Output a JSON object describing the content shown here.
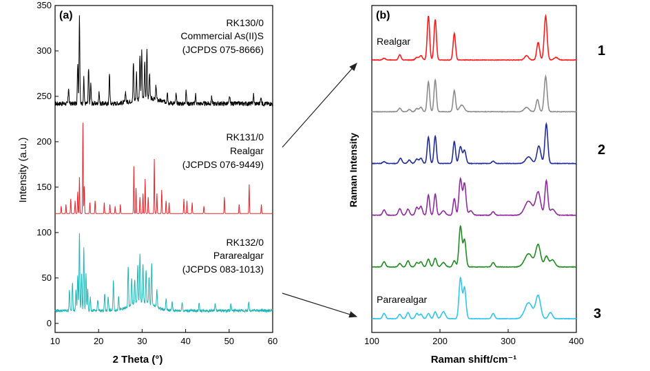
{
  "chart_data": [
    {
      "type": "line",
      "panel_label": "(a)",
      "xlabel": "2 Theta (°)",
      "ylabel": "Intensity (a.u.)",
      "xlim": [
        10,
        60
      ],
      "ylim": [
        -10,
        350
      ],
      "xticks": [
        10,
        20,
        30,
        40,
        50,
        60
      ],
      "yticks": [
        0,
        50,
        100,
        150,
        200,
        250,
        300,
        350
      ],
      "series": [
        {
          "color": "#000000",
          "baseline": 242,
          "noise": 5,
          "peaks": [
            [
              13.1,
              18
            ],
            [
              15.2,
              45
            ],
            [
              15.6,
              98
            ],
            [
              16.6,
              28
            ],
            [
              17.7,
              38
            ],
            [
              18.2,
              22
            ],
            [
              20.1,
              14
            ],
            [
              22.5,
              34
            ],
            [
              26.2,
              12
            ],
            [
              28.0,
              42
            ],
            [
              28.7,
              30
            ],
            [
              29.5,
              48
            ],
            [
              29.9,
              52
            ],
            [
              30.6,
              40
            ],
            [
              31.1,
              52
            ],
            [
              31.7,
              28
            ],
            [
              33.2,
              16
            ],
            [
              35.8,
              12
            ],
            [
              37.8,
              10
            ],
            [
              40.1,
              16
            ],
            [
              42.3,
              10
            ],
            [
              46.0,
              8
            ],
            [
              50.1,
              8
            ],
            [
              55.6,
              10
            ],
            [
              57.3,
              8
            ]
          ],
          "labels": [
            "RK130/0",
            "Commercial As(II)S",
            "(JCPDS 075-8666)"
          ]
        },
        {
          "color": "#e8232a",
          "baseline": 121,
          "noise": 0,
          "peaks": [
            [
              11.4,
              8
            ],
            [
              12.5,
              10
            ],
            [
              13.6,
              16
            ],
            [
              14.6,
              14
            ],
            [
              15.2,
              24
            ],
            [
              15.6,
              40
            ],
            [
              16.4,
              100
            ],
            [
              16.7,
              30
            ],
            [
              18.0,
              12
            ],
            [
              19.2,
              14
            ],
            [
              21.3,
              12
            ],
            [
              22.6,
              10
            ],
            [
              23.8,
              8
            ],
            [
              25.0,
              10
            ],
            [
              28.1,
              52
            ],
            [
              28.6,
              28
            ],
            [
              29.5,
              18
            ],
            [
              30.2,
              22
            ],
            [
              30.7,
              38
            ],
            [
              31.4,
              18
            ],
            [
              32.8,
              60
            ],
            [
              33.4,
              22
            ],
            [
              34.5,
              26
            ],
            [
              35.5,
              14
            ],
            [
              36.2,
              12
            ],
            [
              39.6,
              16
            ],
            [
              40.3,
              14
            ],
            [
              41.5,
              12
            ],
            [
              44.2,
              8
            ],
            [
              48.9,
              18
            ],
            [
              52.3,
              10
            ],
            [
              54.6,
              32
            ],
            [
              57.4,
              10
            ]
          ],
          "labels": [
            "RK131/0",
            "Realgar",
            "(JCPDS 076-9449)"
          ]
        },
        {
          "color": "#1fb5b5",
          "baseline": 14,
          "noise": 3,
          "peaks": [
            [
              13.3,
              22
            ],
            [
              14.0,
              32
            ],
            [
              14.8,
              22
            ],
            [
              15.2,
              38
            ],
            [
              15.6,
              86
            ],
            [
              16.1,
              40
            ],
            [
              16.6,
              70
            ],
            [
              17.1,
              40
            ],
            [
              17.5,
              24
            ],
            [
              18.1,
              14
            ],
            [
              19.8,
              12
            ],
            [
              21.4,
              18
            ],
            [
              22.2,
              16
            ],
            [
              23.4,
              34
            ],
            [
              24.6,
              16
            ],
            [
              26.8,
              44
            ],
            [
              27.6,
              30
            ],
            [
              28.3,
              26
            ],
            [
              29.0,
              42
            ],
            [
              29.5,
              52
            ],
            [
              30.2,
              40
            ],
            [
              30.9,
              36
            ],
            [
              31.6,
              30
            ],
            [
              32.2,
              46
            ],
            [
              33.4,
              20
            ],
            [
              35.5,
              12
            ],
            [
              36.9,
              10
            ],
            [
              39.2,
              10
            ],
            [
              43.1,
              8
            ],
            [
              46.8,
              8
            ],
            [
              50.4,
              8
            ],
            [
              54.5,
              10
            ]
          ],
          "labels": [
            "RK132/0",
            "Pararealgar",
            "(JCPDS 083-1013)"
          ]
        }
      ]
    },
    {
      "type": "line",
      "panel_label": "(b)",
      "xlabel": "Raman shift/cm⁻¹",
      "ylabel": "Raman Intensity",
      "xlim": [
        100,
        400
      ],
      "xticks": [
        100,
        200,
        300,
        400
      ],
      "series": [
        {
          "color": "#ff1a1a",
          "offset": 6,
          "label": "Realgar",
          "peaks": [
            [
              118,
              0.04,
              3
            ],
            [
              141,
              0.12,
              2.5
            ],
            [
              166,
              0.06,
              3
            ],
            [
              172,
              0.1,
              3
            ],
            [
              183,
              1.0,
              2.5
            ],
            [
              193,
              0.92,
              2.5
            ],
            [
              221,
              0.6,
              2.5
            ],
            [
              327,
              0.1,
              4
            ],
            [
              344,
              0.4,
              3
            ],
            [
              355,
              1.0,
              3
            ],
            [
              370,
              0.06,
              4
            ]
          ]
        },
        {
          "color": "#8c8c8c",
          "offset": 5,
          "peaks": [
            [
              141,
              0.08,
              3
            ],
            [
              155,
              0.05,
              3
            ],
            [
              166,
              0.07,
              3
            ],
            [
              172,
              0.1,
              3
            ],
            [
              183,
              0.68,
              2.5
            ],
            [
              193,
              0.72,
              2.5
            ],
            [
              221,
              0.48,
              2.5
            ],
            [
              232,
              0.15,
              5
            ],
            [
              327,
              0.1,
              5
            ],
            [
              343,
              0.28,
              3
            ],
            [
              355,
              0.8,
              3
            ]
          ]
        },
        {
          "color": "#1f2a9a",
          "offset": 4,
          "peaks": [
            [
              118,
              0.04,
              3
            ],
            [
              142,
              0.12,
              3
            ],
            [
              155,
              0.08,
              3
            ],
            [
              166,
              0.1,
              3
            ],
            [
              172,
              0.12,
              3
            ],
            [
              183,
              0.6,
              2.5
            ],
            [
              193,
              0.62,
              2.5
            ],
            [
              221,
              0.5,
              2.5
            ],
            [
              230,
              0.38,
              3
            ],
            [
              236,
              0.3,
              3
            ],
            [
              278,
              0.05,
              3
            ],
            [
              330,
              0.15,
              6
            ],
            [
              345,
              0.4,
              4
            ],
            [
              356,
              0.9,
              3
            ]
          ]
        },
        {
          "color": "#8e2a9e",
          "offset": 3,
          "peaks": [
            [
              118,
              0.12,
              3
            ],
            [
              141,
              0.15,
              3
            ],
            [
              153,
              0.14,
              3
            ],
            [
              166,
              0.18,
              3
            ],
            [
              172,
              0.2,
              3
            ],
            [
              183,
              0.46,
              2.5
            ],
            [
              193,
              0.48,
              2.5
            ],
            [
              205,
              0.1,
              4
            ],
            [
              221,
              0.38,
              2.5
            ],
            [
              230,
              0.82,
              3
            ],
            [
              236,
              0.72,
              3
            ],
            [
              245,
              0.1,
              4
            ],
            [
              278,
              0.08,
              3
            ],
            [
              330,
              0.32,
              8
            ],
            [
              344,
              0.52,
              5
            ],
            [
              356,
              0.78,
              3
            ],
            [
              365,
              0.14,
              5
            ]
          ]
        },
        {
          "color": "#1e8c1e",
          "offset": 2,
          "peaks": [
            [
              118,
              0.12,
              3
            ],
            [
              141,
              0.08,
              3
            ],
            [
              153,
              0.14,
              3
            ],
            [
              166,
              0.1,
              3
            ],
            [
              172,
              0.12,
              3
            ],
            [
              183,
              0.18,
              3
            ],
            [
              193,
              0.2,
              3
            ],
            [
              205,
              0.1,
              4
            ],
            [
              221,
              0.14,
              3
            ],
            [
              230,
              0.92,
              3
            ],
            [
              236,
              0.62,
              3
            ],
            [
              278,
              0.1,
              3
            ],
            [
              330,
              0.3,
              8
            ],
            [
              344,
              0.5,
              5
            ],
            [
              356,
              0.24,
              4
            ],
            [
              365,
              0.16,
              5
            ]
          ]
        },
        {
          "color": "#2ec5ef",
          "offset": 1,
          "label": "Pararealgar",
          "peaks": [
            [
              118,
              0.12,
              3
            ],
            [
              141,
              0.1,
              3
            ],
            [
              153,
              0.14,
              3
            ],
            [
              166,
              0.12,
              3
            ],
            [
              172,
              0.1,
              3
            ],
            [
              183,
              0.12,
              3
            ],
            [
              193,
              0.16,
              3
            ],
            [
              205,
              0.16,
              4
            ],
            [
              230,
              0.92,
              3
            ],
            [
              236,
              0.7,
              3
            ],
            [
              278,
              0.12,
              3
            ],
            [
              330,
              0.36,
              8
            ],
            [
              344,
              0.52,
              5
            ],
            [
              362,
              0.14,
              4
            ]
          ]
        }
      ]
    }
  ],
  "sample_numbers": [
    "1",
    "2",
    "3"
  ]
}
